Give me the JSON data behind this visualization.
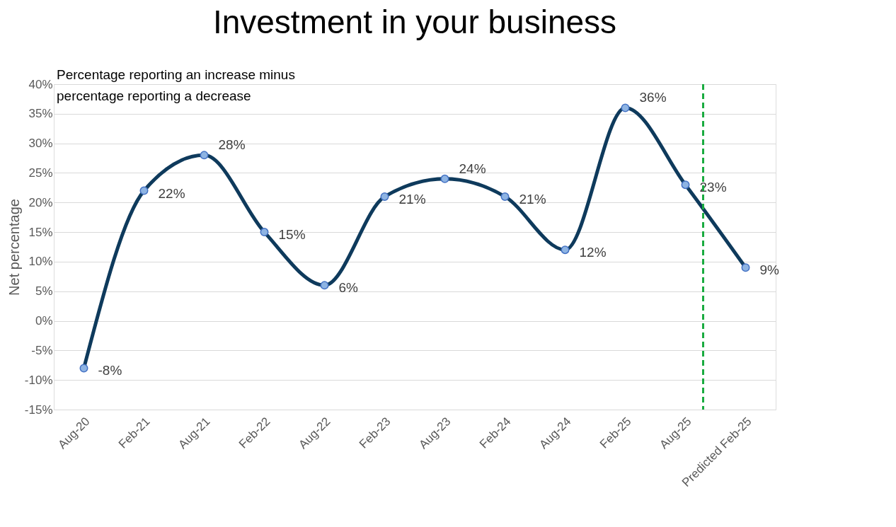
{
  "chart_data": {
    "type": "line",
    "title": "Investment in your business",
    "ylabel": "Net percentage",
    "annotations": [
      "Percentage reporting an increase minus percentage reporting a decrease"
    ],
    "categories": [
      "Aug-20",
      "Feb-21",
      "Aug-21",
      "Feb-22",
      "Aug-22",
      "Feb-23",
      "Aug-23",
      "Feb-24",
      "Aug-24",
      "Feb-25",
      "Aug-25",
      "Predicted Feb-25"
    ],
    "series": [
      {
        "color": "#0e3a5c",
        "values": [
          -8,
          22,
          28,
          15,
          6,
          21,
          24,
          21,
          12,
          36,
          23,
          9
        ],
        "value_labels": [
          "-8%",
          "22%",
          "28%",
          "15%",
          "6%",
          "21%",
          "24%",
          "21%",
          "12%",
          "36%",
          "23%",
          "9%"
        ]
      }
    ],
    "ylim": [
      -15,
      40
    ],
    "yticks": [
      {
        "value": -15,
        "label": "-15%"
      },
      {
        "value": -10,
        "label": "-10%"
      },
      {
        "value": -5,
        "label": "-5%"
      },
      {
        "value": 0,
        "label": "0%"
      },
      {
        "value": 5,
        "label": "5%"
      },
      {
        "value": 10,
        "label": "10%"
      },
      {
        "value": 15,
        "label": "15%"
      },
      {
        "value": 20,
        "label": "20%"
      },
      {
        "value": 25,
        "label": "25%"
      },
      {
        "value": 30,
        "label": "30%"
      },
      {
        "value": 35,
        "label": "35%"
      },
      {
        "value": 40,
        "label": "40%"
      }
    ],
    "ref_lines": [
      {
        "axis": "x",
        "value": "Aug-25",
        "color": "#1aab40",
        "line_style": "dashed"
      }
    ],
    "grid": "y",
    "marker": "circle",
    "line_style": "solid"
  }
}
